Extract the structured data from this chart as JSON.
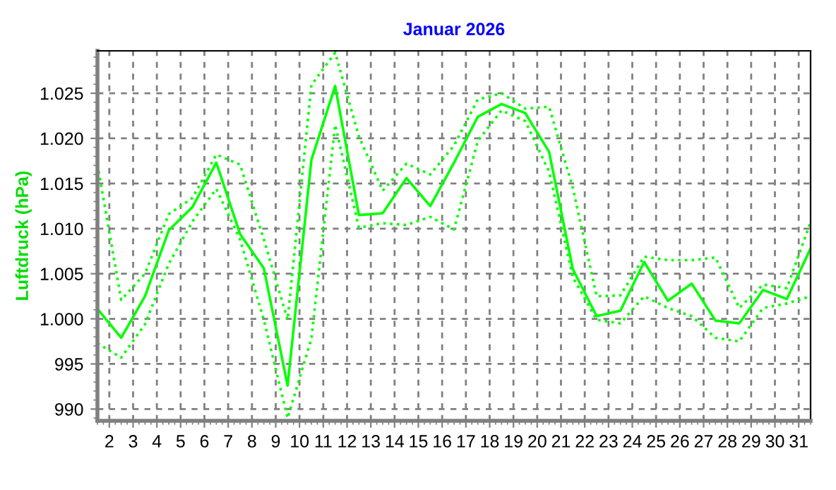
{
  "chart_data": {
    "type": "line",
    "title": "Januar 2026",
    "ylabel": "Luftdruck (hPa)",
    "x": [
      1.5,
      2.5,
      3.5,
      4.5,
      5.5,
      6.5,
      7.5,
      8.5,
      9.5,
      10.5,
      11.5,
      12.5,
      13.5,
      14.5,
      15.5,
      16.5,
      17.5,
      18.5,
      19.5,
      20.5,
      21.5,
      22.5,
      23.5,
      24.5,
      25.5,
      26.5,
      27.5,
      28.5,
      29.5,
      30.5,
      31.5
    ],
    "series": [
      {
        "color": "#00ff00",
        "line_style": "solid",
        "values": [
          1001.1,
          997.9,
          1002.5,
          1009.8,
          1012.4,
          1017.3,
          1009.4,
          1005.6,
          992.6,
          1017.6,
          1025.8,
          1011.5,
          1011.7,
          1015.6,
          1012.5,
          1017.3,
          1022.4,
          1023.8,
          1022.8,
          1018.5,
          1005.5,
          1000.3,
          1000.9,
          1006.3,
          1002.0,
          1003.9,
          999.8,
          999.5,
          1003.2,
          1002.2,
          1007.8
        ]
      },
      {
        "color": "#00ff00",
        "line_style": "dotted",
        "values": [
          1017.1,
          1002.1,
          1005.0,
          1011.6,
          1013.4,
          1018.2,
          1017.1,
          1008.8,
          999.9,
          1025.9,
          1029.5,
          1020.2,
          1014.2,
          1017.2,
          1016.0,
          1019.2,
          1024.3,
          1025.0,
          1023.3,
          1023.5,
          1014.5,
          1002.5,
          1002.6,
          1006.9,
          1006.5,
          1006.5,
          1006.8,
          1001.2,
          1003.8,
          1003.4,
          1010.7
        ]
      },
      {
        "color": "#00ff00",
        "line_style": "dotted",
        "values": [
          997.3,
          995.7,
          999.4,
          1006.1,
          1010.8,
          1014.4,
          1008.8,
          999.9,
          989.0,
          997.8,
          1021.5,
          1010.1,
          1010.6,
          1010.4,
          1011.3,
          1009.9,
          1019.7,
          1023.1,
          1021.9,
          1016.3,
          1004.6,
          999.9,
          999.5,
          1002.5,
          1001.2,
          1000.3,
          997.9,
          997.5,
          1001.2,
          1001.7,
          1002.5
        ]
      }
    ],
    "xlim": [
      1.5,
      31.5
    ],
    "xticks": [
      2,
      3,
      4,
      5,
      6,
      7,
      8,
      9,
      10,
      11,
      12,
      13,
      14,
      15,
      16,
      17,
      18,
      19,
      20,
      21,
      22,
      23,
      24,
      25,
      26,
      27,
      28,
      29,
      30,
      31
    ],
    "ylim": [
      988.7,
      1029.7
    ],
    "yticks": [
      990,
      995,
      {
        "value": 1000,
        "label": "1.000"
      },
      {
        "value": 1005,
        "label": "1.005"
      },
      {
        "value": 1010,
        "label": "1.010"
      },
      {
        "value": 1015,
        "label": "1.015"
      },
      {
        "value": 1020,
        "label": "1.020"
      },
      {
        "value": 1025,
        "label": "1.025"
      }
    ],
    "grid": true,
    "marker": "none"
  }
}
